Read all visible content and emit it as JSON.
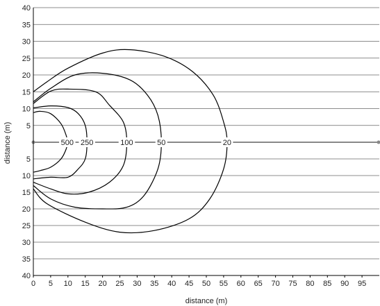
{
  "chart_data": {
    "type": "line",
    "xlabel": "distance (m)",
    "ylabel": "distance (m)",
    "xlim": [
      0,
      100
    ],
    "ylim": [
      -40,
      40
    ],
    "x_ticks": [
      0,
      5,
      10,
      15,
      20,
      25,
      30,
      35,
      40,
      45,
      50,
      55,
      60,
      65,
      70,
      75,
      80,
      85,
      90,
      95
    ],
    "y_ticks_upper": [
      40,
      35,
      30,
      25,
      20,
      15,
      10,
      5
    ],
    "y_ticks_lower": [
      5,
      10,
      15,
      20,
      25,
      30,
      35,
      40
    ],
    "grid": "horizontal",
    "baseline_y": 0,
    "colors": {
      "contour": "#000000",
      "grid": "#666666",
      "baseline": "#888888"
    },
    "series": [
      {
        "name": "500",
        "points": [
          [
            0,
            -9
          ],
          [
            2,
            -8.5
          ],
          [
            5,
            -7.5
          ],
          [
            8,
            -5
          ],
          [
            9.5,
            -2
          ],
          [
            9.8,
            0
          ],
          [
            9.5,
            2
          ],
          [
            8,
            5.5
          ],
          [
            5,
            8.5
          ],
          [
            2,
            9.2
          ],
          [
            0,
            8.8
          ]
        ]
      },
      {
        "name": "250",
        "points": [
          [
            0,
            -11
          ],
          [
            5,
            -10.5
          ],
          [
            10,
            -10.5
          ],
          [
            13,
            -8
          ],
          [
            15,
            -5
          ],
          [
            15.5,
            0
          ],
          [
            15,
            5
          ],
          [
            13,
            8.5
          ],
          [
            10,
            10.3
          ],
          [
            5,
            10.8
          ],
          [
            0,
            10.2
          ]
        ]
      },
      {
        "name": "100",
        "points": [
          [
            0,
            -12
          ],
          [
            5,
            -14
          ],
          [
            10,
            -15.5
          ],
          [
            16,
            -15
          ],
          [
            22,
            -12
          ],
          [
            26,
            -7
          ],
          [
            27,
            0
          ],
          [
            26,
            6
          ],
          [
            22,
            11
          ],
          [
            18,
            15
          ],
          [
            10,
            15.8
          ],
          [
            5,
            15.2
          ],
          [
            0,
            11.5
          ]
        ]
      },
      {
        "name": "50",
        "points": [
          [
            0,
            -13
          ],
          [
            5,
            -17
          ],
          [
            12,
            -19.5
          ],
          [
            20,
            -20
          ],
          [
            27,
            -19.5
          ],
          [
            32,
            -16
          ],
          [
            36,
            -8
          ],
          [
            37,
            0
          ],
          [
            36,
            8
          ],
          [
            33,
            14
          ],
          [
            28,
            18.5
          ],
          [
            20,
            20.5
          ],
          [
            12,
            20
          ],
          [
            5,
            16
          ],
          [
            0,
            12
          ]
        ]
      },
      {
        "name": "20",
        "points": [
          [
            0,
            -14
          ],
          [
            4,
            -18.5
          ],
          [
            15,
            -24
          ],
          [
            25,
            -27
          ],
          [
            35,
            -26.5
          ],
          [
            45,
            -23
          ],
          [
            51,
            -17
          ],
          [
            55,
            -8
          ],
          [
            56,
            0
          ],
          [
            55,
            6
          ],
          [
            52,
            14
          ],
          [
            46,
            21
          ],
          [
            38,
            25.5
          ],
          [
            28,
            27.5
          ],
          [
            20,
            26.5
          ],
          [
            10,
            22
          ],
          [
            4,
            18
          ],
          [
            0,
            15
          ]
        ]
      }
    ]
  }
}
